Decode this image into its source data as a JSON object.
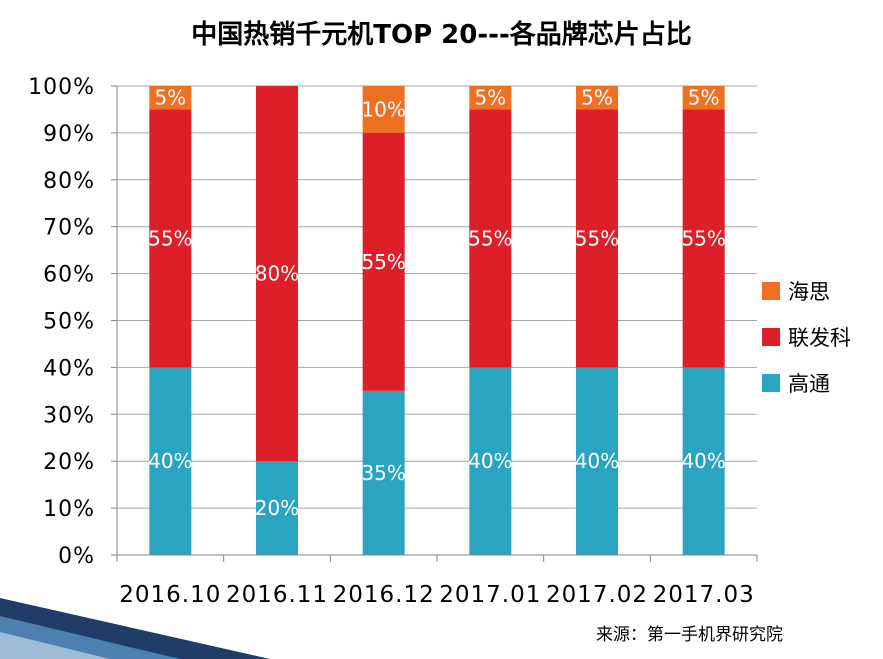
{
  "chart_data": {
    "type": "bar",
    "stacked": true,
    "title": "中国热销千元机TOP 20---各品牌芯片占比",
    "categories": [
      "2016.10",
      "2016.11",
      "2016.12",
      "2017.01",
      "2017.02",
      "2017.03"
    ],
    "series": [
      {
        "name": "高通",
        "color": "#2aa4c0",
        "values": [
          40,
          20,
          35,
          40,
          40,
          40
        ],
        "labels": [
          "40%",
          "20%",
          "35%",
          "40%",
          "40%",
          "40%"
        ]
      },
      {
        "name": "联发科",
        "color": "#dc1f28",
        "values": [
          55,
          80,
          55,
          55,
          55,
          55
        ],
        "labels": [
          "55%",
          "80%",
          "55%",
          "55%",
          "55%",
          "55%"
        ]
      },
      {
        "name": "海思",
        "color": "#ee7022",
        "values": [
          5,
          0,
          10,
          5,
          5,
          5
        ],
        "labels": [
          "5%",
          "",
          "10%",
          "5%",
          "5%",
          "5%"
        ]
      }
    ],
    "ylim": [
      0,
      100
    ],
    "yticks": [
      0,
      10,
      20,
      30,
      40,
      50,
      60,
      70,
      80,
      90,
      100
    ],
    "ytick_labels": [
      "0%",
      "10%",
      "20%",
      "30%",
      "40%",
      "50%",
      "60%",
      "70%",
      "80%",
      "90%",
      "100%"
    ],
    "grid": true,
    "legend_position": "right",
    "legend_order": [
      "海思",
      "联发科",
      "高通"
    ]
  },
  "source": "来源：第一手机界研究院"
}
